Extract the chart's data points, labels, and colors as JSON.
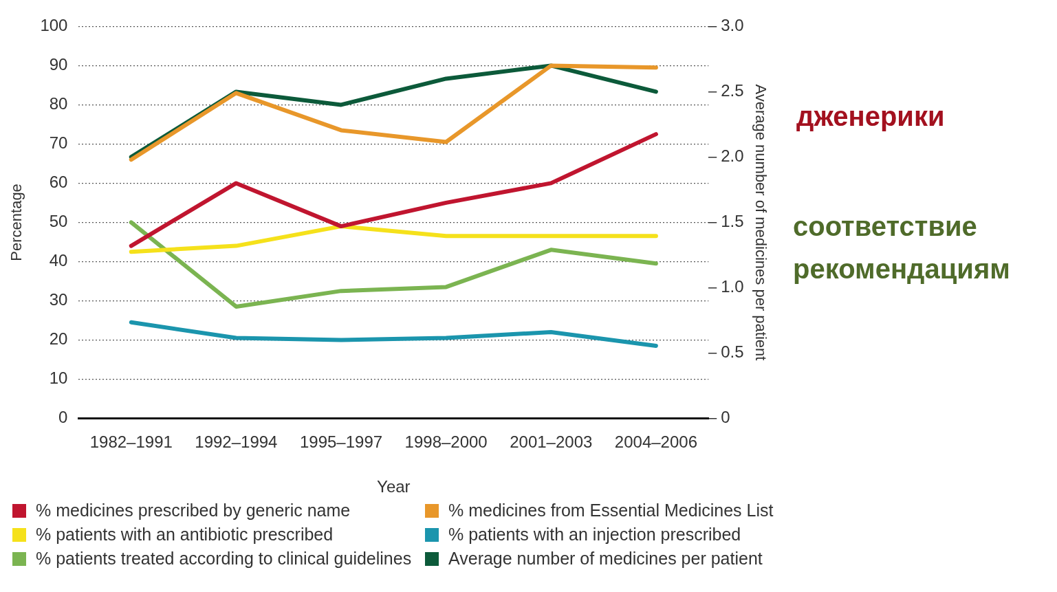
{
  "chart_data": {
    "type": "line",
    "xlabel": "Year",
    "ylabel": "Percentage",
    "y2label": "Average number of medicines per patient",
    "categories": [
      "1982–1991",
      "1992–1994",
      "1995–1997",
      "1998–2000",
      "2001–2003",
      "2004–2006"
    ],
    "series": [
      {
        "name": "% medicines prescribed by generic name",
        "color": "#c0152f",
        "values": [
          44,
          60,
          49,
          55,
          60,
          72.5
        ]
      },
      {
        "name": "% medicines from Essential Medicines List",
        "color": "#e8972a",
        "values": [
          66,
          83,
          73.5,
          70.5,
          90,
          89.5
        ]
      },
      {
        "name": "% patients with an antibiotic prescribed",
        "color": "#f5e11b",
        "values": [
          42.5,
          44,
          49,
          46.5,
          46.5,
          46.5
        ]
      },
      {
        "name": "% patients with an injection prescribed",
        "color": "#1b95ad",
        "values": [
          24.5,
          20.5,
          20,
          20.5,
          22,
          18.5
        ]
      },
      {
        "name": "% patients treated according to clinical guidelines",
        "color": "#7bb451",
        "values": [
          50,
          28.5,
          32.5,
          33.5,
          43,
          39.5
        ]
      },
      {
        "name": "Average number of medicines per patient",
        "color": "#0c5a3a",
        "axis": "y2",
        "values": [
          2.0,
          2.5,
          2.4,
          2.6,
          2.7,
          2.5
        ]
      }
    ],
    "ylim": [
      0,
      100
    ],
    "yticks": [
      0,
      10,
      20,
      30,
      40,
      50,
      60,
      70,
      80,
      90,
      100
    ],
    "y2lim": [
      0,
      3
    ],
    "y2ticks": [
      0,
      {
        "value": 0.5,
        "label": "0.5"
      },
      {
        "value": 1,
        "label": "1.0"
      },
      {
        "value": 1.5,
        "label": "1.5"
      },
      {
        "value": 2,
        "label": "2.0"
      },
      {
        "value": 2.5,
        "label": "2.5"
      },
      {
        "value": 3,
        "label": "3.0"
      }
    ],
    "grid": "y",
    "legend": "bottom",
    "marker": "none",
    "line_style": "solid",
    "annotations": [
      "дженерики",
      "соответствие рекомендациям"
    ]
  }
}
